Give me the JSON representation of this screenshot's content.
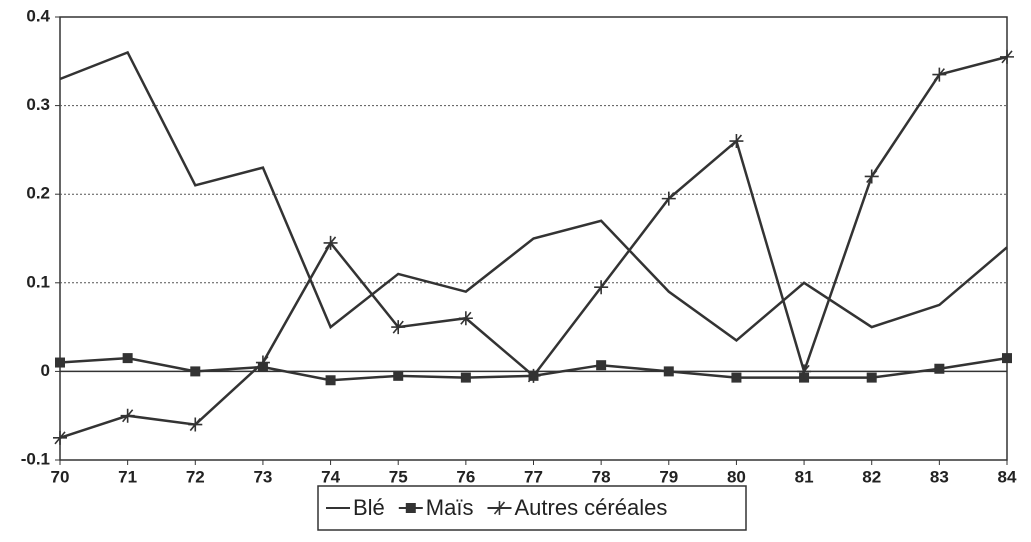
{
  "chart_data": {
    "type": "line",
    "categories": [
      "70",
      "71",
      "72",
      "73",
      "74",
      "75",
      "76",
      "77",
      "78",
      "79",
      "80",
      "81",
      "82",
      "83",
      "84"
    ],
    "series": [
      {
        "name": "Blé",
        "color": "#333333",
        "marker": "none",
        "values": [
          0.33,
          0.36,
          0.21,
          0.23,
          0.05,
          0.11,
          0.09,
          0.15,
          0.17,
          0.09,
          0.035,
          0.1,
          0.05,
          0.075,
          0.14
        ]
      },
      {
        "name": "Maïs",
        "color": "#333333",
        "marker": "square",
        "values": [
          0.01,
          0.015,
          0,
          0.005,
          -0.01,
          -0.005,
          -0.007,
          -0.005,
          0.007,
          0,
          -0.007,
          -0.007,
          -0.007,
          0.003,
          0.015
        ]
      },
      {
        "name": "Autres céréales",
        "color": "#333333",
        "marker": "star",
        "values": [
          -0.075,
          -0.05,
          -0.06,
          0.01,
          0.145,
          0.05,
          0.06,
          -0.005,
          0.095,
          0.195,
          0.26,
          0,
          0.22,
          0.335,
          0.355
        ]
      }
    ],
    "ylim": [
      -0.1,
      0.4
    ],
    "yticks": [
      -0.1,
      0,
      0.1,
      0.2,
      0.3,
      0.4
    ],
    "grid": true,
    "legend": "bottom"
  }
}
